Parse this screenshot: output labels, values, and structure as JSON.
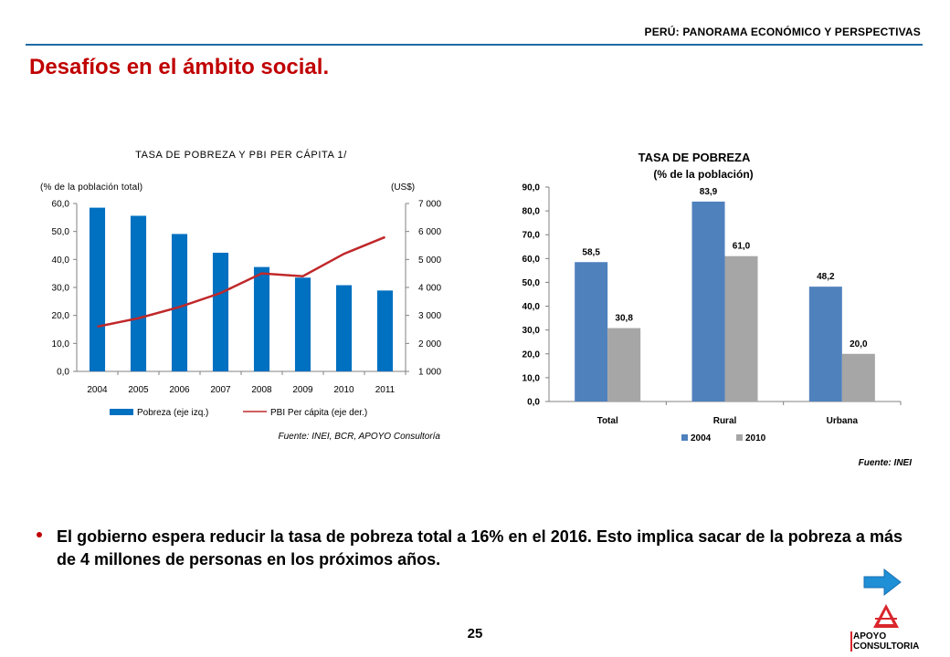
{
  "header": {
    "title": "PERÚ: PANORAMA ECONÓMICO Y PERSPECTIVAS"
  },
  "page": {
    "title": "Desafíos en el ámbito social.",
    "number": "25"
  },
  "colors": {
    "accent_red": "#c00000",
    "bar_blue": "#0070c0",
    "line_red": "#c0282a",
    "blue_2004": "#4f81bd",
    "gray_2010": "#a6a6a6",
    "header_line": "#1f6aa5"
  },
  "chart_data": [
    {
      "type": "bar",
      "title": "TASA DE POBREZA Y PBI PER CÁPITA 1/",
      "left_axis_label": "(% de la población total)",
      "right_axis_label": "(US$)",
      "categories": [
        "2004",
        "2005",
        "2006",
        "2007",
        "2008",
        "2009",
        "2010",
        "2011"
      ],
      "series": [
        {
          "name": "Pobreza (eje izq.)",
          "kind": "bar",
          "axis": "left",
          "values": [
            58.5,
            55.6,
            49.1,
            42.4,
            37.3,
            33.5,
            30.8,
            28.9
          ]
        },
        {
          "name": "PBI Per cápita (eje der.)",
          "kind": "line",
          "axis": "right",
          "values": [
            2600,
            2900,
            3300,
            3800,
            4500,
            4400,
            5200,
            5800
          ]
        }
      ],
      "ylim_left": [
        0,
        60
      ],
      "ylim_right": [
        1000,
        7000
      ],
      "left_ticks": [
        "0,0",
        "10,0",
        "20,0",
        "30,0",
        "40,0",
        "50,0",
        "60,0"
      ],
      "right_ticks": [
        "1 000",
        "2 000",
        "3 000",
        "4 000",
        "5 000",
        "6 000",
        "7 000"
      ],
      "grid": false,
      "legend_position": "bottom",
      "source": "Fuente: INEI, BCR, APOYO Consultoría"
    },
    {
      "type": "bar",
      "title": "TASA DE POBREZA",
      "subtitle": "(% de la población)",
      "categories": [
        "Total",
        "Rural",
        "Urbana"
      ],
      "series": [
        {
          "name": "2004",
          "values": [
            58.5,
            83.9,
            48.2
          ],
          "labels": [
            "58,5",
            "83,9",
            "48,2"
          ]
        },
        {
          "name": "2010",
          "values": [
            30.8,
            61.0,
            20.0
          ],
          "labels": [
            "30,8",
            "61,0",
            "20,0"
          ]
        }
      ],
      "ylim": [
        0,
        90
      ],
      "y_ticks": [
        "0,0",
        "10,0",
        "20,0",
        "30,0",
        "40,0",
        "50,0",
        "60,0",
        "70,0",
        "80,0",
        "90,0"
      ],
      "grid": false,
      "legend_position": "bottom",
      "source": "Fuente: INEI"
    }
  ],
  "bullet": {
    "text": "El gobierno espera reducir la tasa de pobreza total a 16% en el 2016. Esto implica sacar de la pobreza a más de 4 millones de personas en los próximos años."
  },
  "logo": {
    "line1": "APOYO",
    "line2": "CONSULTORIA"
  },
  "icons": {
    "next": "right-arrow-icon"
  }
}
